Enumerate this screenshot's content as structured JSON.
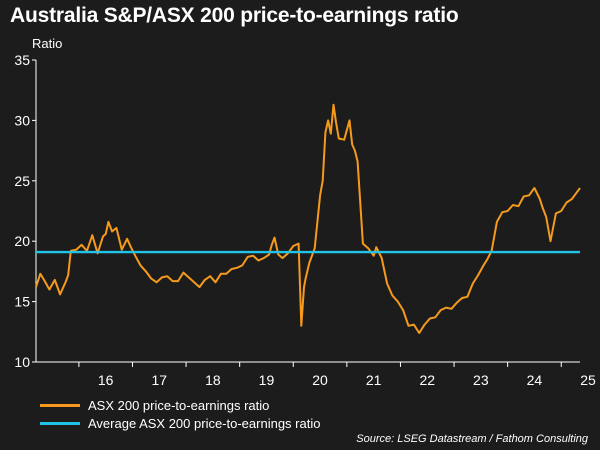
{
  "title": "Australia S&P/ASX 200 price-to-earnings ratio",
  "source": "Source: LSEG Datastream / Fathom Consulting",
  "chart_data": {
    "type": "line",
    "ylabel": "Ratio",
    "xlabel": "",
    "ylim": [
      10,
      35
    ],
    "xlim": [
      2015.2,
      2025.35
    ],
    "yticks": [
      10,
      15,
      20,
      25,
      30,
      35
    ],
    "xticks": [
      2016,
      2017,
      2018,
      2019,
      2020,
      2021,
      2022,
      2023,
      2024,
      2025
    ],
    "xtick_labels": [
      "16",
      "17",
      "18",
      "19",
      "20",
      "21",
      "22",
      "23",
      "24",
      "25"
    ],
    "grid": false,
    "legend_position": "bottom-left",
    "series": [
      {
        "name": "ASX 200 price-to-earnings ratio",
        "color": "#f59a1c",
        "x": [
          2015.2,
          2015.28,
          2015.35,
          2015.45,
          2015.55,
          2015.65,
          2015.75,
          2015.8,
          2015.85,
          2015.95,
          2016.05,
          2016.15,
          2016.25,
          2016.35,
          2016.45,
          2016.5,
          2016.55,
          2016.62,
          2016.7,
          2016.8,
          2016.9,
          2016.97,
          2017.05,
          2017.15,
          2017.25,
          2017.35,
          2017.45,
          2017.55,
          2017.65,
          2017.75,
          2017.85,
          2017.95,
          2018.05,
          2018.15,
          2018.25,
          2018.35,
          2018.45,
          2018.55,
          2018.65,
          2018.75,
          2018.85,
          2018.95,
          2019.05,
          2019.15,
          2019.25,
          2019.35,
          2019.45,
          2019.55,
          2019.6,
          2019.65,
          2019.72,
          2019.8,
          2019.9,
          2020.0,
          2020.1,
          2020.15,
          2020.2,
          2020.23,
          2020.3,
          2020.4,
          2020.5,
          2020.55,
          2020.6,
          2020.65,
          2020.7,
          2020.75,
          2020.8,
          2020.85,
          2020.95,
          2021.05,
          2021.1,
          2021.15,
          2021.2,
          2021.3,
          2021.4,
          2021.5,
          2021.55,
          2021.65,
          2021.75,
          2021.85,
          2021.95,
          2022.05,
          2022.15,
          2022.25,
          2022.35,
          2022.45,
          2022.55,
          2022.65,
          2022.75,
          2022.85,
          2022.95,
          2023.05,
          2023.15,
          2023.25,
          2023.35,
          2023.45,
          2023.55,
          2023.62,
          2023.7,
          2023.8,
          2023.9,
          2024.0,
          2024.1,
          2024.2,
          2024.3,
          2024.4,
          2024.5,
          2024.6,
          2024.65,
          2024.72,
          2024.8,
          2024.9,
          2025.0,
          2025.1,
          2025.2,
          2025.3,
          2025.35
        ],
        "values": [
          16.2,
          17.3,
          16.8,
          16.0,
          16.8,
          15.6,
          16.6,
          17.2,
          19.2,
          19.3,
          19.7,
          19.2,
          20.5,
          19.0,
          20.4,
          20.6,
          21.6,
          20.8,
          21.1,
          19.3,
          20.2,
          19.5,
          18.8,
          18.0,
          17.5,
          16.9,
          16.6,
          17.0,
          17.1,
          16.7,
          16.7,
          17.4,
          17.0,
          16.6,
          16.2,
          16.8,
          17.1,
          16.6,
          17.3,
          17.3,
          17.7,
          17.8,
          18.0,
          18.7,
          18.8,
          18.4,
          18.6,
          18.9,
          19.7,
          20.3,
          18.9,
          18.6,
          19.0,
          19.6,
          19.8,
          13.0,
          16.2,
          16.9,
          18.2,
          19.4,
          23.8,
          25.0,
          29.0,
          30.0,
          28.9,
          31.3,
          29.8,
          28.5,
          28.4,
          30.0,
          28.0,
          27.5,
          26.6,
          19.8,
          19.4,
          18.8,
          19.5,
          18.6,
          16.5,
          15.5,
          15.0,
          14.3,
          13.0,
          13.1,
          12.4,
          13.1,
          13.6,
          13.7,
          14.3,
          14.5,
          14.4,
          14.9,
          15.3,
          15.4,
          16.5,
          17.2,
          18.0,
          18.5,
          19.2,
          21.6,
          22.4,
          22.5,
          23.0,
          22.9,
          23.7,
          23.8,
          24.4,
          23.5,
          22.8,
          22.0,
          20.0,
          22.3,
          22.5,
          23.2,
          23.5,
          24.1,
          24.4
        ]
      },
      {
        "name": "Average ASX 200 price-to-earnings ratio",
        "color": "#21c4e8",
        "x": [
          2015.2,
          2025.35
        ],
        "values": [
          19.1,
          19.1
        ]
      }
    ]
  }
}
